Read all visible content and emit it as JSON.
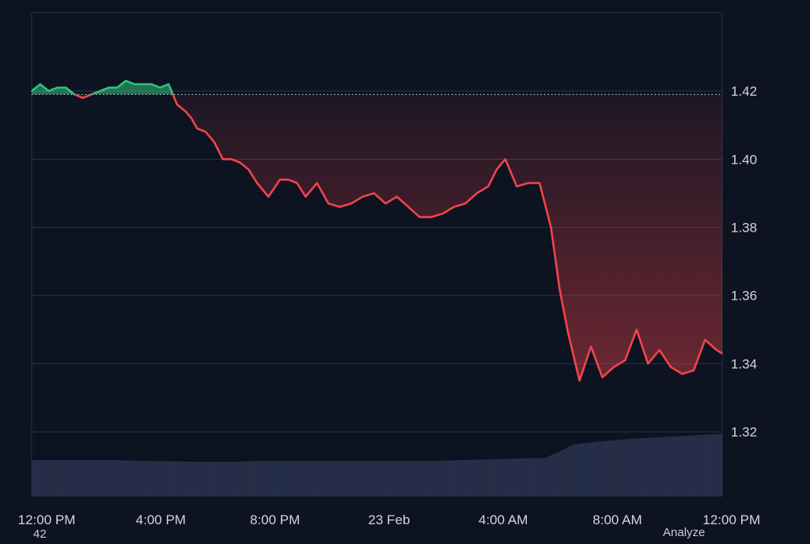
{
  "chart_data": {
    "type": "line",
    "title": "",
    "xlabel": "",
    "ylabel": "",
    "x_ticks": [
      "12:00 PM",
      "4:00 PM",
      "8:00 PM",
      "23 Feb",
      "4:00 AM",
      "8:00 AM",
      "12:00 PM"
    ],
    "x_range_hours": [
      0,
      24.2
    ],
    "y_ticks": [
      "1.42",
      "1.40",
      "1.38",
      "1.36",
      "1.34",
      "1.32"
    ],
    "ylim": [
      1.301,
      1.443
    ],
    "baseline": 1.419,
    "grid": true,
    "colors": {
      "up": "#2ec27e",
      "down": "#f0444c",
      "volume": "#2a3450",
      "grid": "#2c3444",
      "baseline": "#c0c4cc",
      "tick_text": "#d3d6dc"
    },
    "series": [
      {
        "x": [
          0,
          0.3,
          0.6,
          0.9,
          1.2,
          1.5,
          1.8,
          2.1,
          2.4,
          2.7,
          3.0,
          3.3,
          3.6,
          3.9,
          4.2,
          4.5,
          4.8,
          5.1,
          5.4,
          5.6,
          5.8,
          6.1,
          6.4,
          6.7,
          7.0,
          7.3,
          7.6,
          7.9,
          8.3,
          8.7,
          9.0,
          9.3,
          9.6,
          10.0,
          10.4,
          10.8,
          11.2,
          11.6,
          12.0,
          12.4,
          12.8,
          13.2,
          13.6,
          14.0,
          14.4,
          14.8,
          15.2,
          15.6,
          16.0,
          16.3,
          16.6,
          17.0,
          17.4,
          17.8,
          18.2,
          18.5,
          18.8,
          19.2,
          19.6,
          20.0,
          20.4,
          20.8,
          21.2,
          21.6,
          22.0,
          22.4,
          22.8,
          23.2,
          23.6,
          24.0,
          24.2
        ],
        "values": [
          1.42,
          1.422,
          1.42,
          1.421,
          1.421,
          1.419,
          1.418,
          1.419,
          1.42,
          1.421,
          1.421,
          1.423,
          1.422,
          1.422,
          1.422,
          1.421,
          1.422,
          1.416,
          1.414,
          1.412,
          1.409,
          1.408,
          1.405,
          1.4,
          1.4,
          1.399,
          1.397,
          1.393,
          1.389,
          1.394,
          1.394,
          1.393,
          1.389,
          1.393,
          1.387,
          1.386,
          1.387,
          1.389,
          1.39,
          1.387,
          1.389,
          1.386,
          1.383,
          1.383,
          1.384,
          1.386,
          1.387,
          1.39,
          1.392,
          1.397,
          1.4,
          1.392,
          1.393,
          1.393,
          1.38,
          1.362,
          1.349,
          1.335,
          1.345,
          1.336,
          1.339,
          1.341,
          1.35,
          1.34,
          1.344,
          1.339,
          1.337,
          1.338,
          1.347,
          1.344,
          1.343
        ]
      }
    ],
    "volume_series": {
      "x": [
        0,
        3,
        4,
        6,
        7,
        8,
        9.5,
        10,
        11,
        12,
        13,
        14,
        15,
        16,
        17,
        18,
        18.5,
        19,
        20,
        21,
        22,
        23,
        24,
        24.2
      ],
      "values": [
        46,
        46,
        45,
        44,
        44,
        45,
        45,
        45,
        45,
        45,
        45,
        45,
        46,
        47,
        48,
        49,
        57,
        66,
        70,
        73,
        75,
        77,
        79,
        79
      ]
    }
  },
  "stray_texts": [
    "42",
    "Analyze"
  ]
}
